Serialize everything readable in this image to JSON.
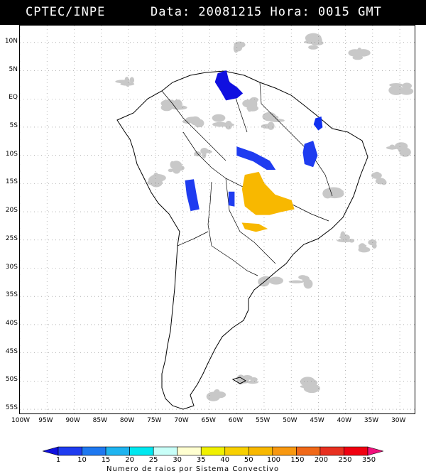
{
  "header": {
    "agency": "CPTEC/INPE",
    "datetime": "Data: 20081215 Hora: 0015 GMT"
  },
  "latitude_labels": [
    "10N",
    "5N",
    "EQ",
    "5S",
    "10S",
    "15S",
    "20S",
    "25S",
    "30S",
    "35S",
    "40S",
    "45S",
    "50S",
    "55S"
  ],
  "longitude_labels": [
    "100W",
    "95W",
    "90W",
    "85W",
    "80W",
    "75W",
    "70W",
    "65W",
    "60W",
    "55W",
    "50W",
    "45W",
    "40W",
    "35W",
    "30W"
  ],
  "legend": {
    "title": "Numero de raios por Sistema Convectivo",
    "values": [
      "1",
      "10",
      "15",
      "20",
      "25",
      "30",
      "35",
      "40",
      "50",
      "100",
      "150",
      "200",
      "250",
      "350"
    ],
    "colors": [
      "#1010e0",
      "#1f3cf0",
      "#1e78f0",
      "#1eb4f0",
      "#00e8f0",
      "#c8fff8",
      "#ffffd0",
      "#f0f000",
      "#f8d000",
      "#f8b800",
      "#f89810",
      "#f06818",
      "#e83020",
      "#f00010",
      "#f0107c"
    ]
  },
  "map": {
    "lon_range": [
      -100,
      -27
    ],
    "lat_range": [
      -56,
      13
    ],
    "grid_dashed": true,
    "cloud_color": "#c8c8c8",
    "systems": [
      {
        "name": "amazon-north",
        "color": "#1010e0",
        "lonlat": [
          [
            -63.5,
            4.5
          ],
          [
            -62,
            5
          ],
          [
            -61.5,
            3
          ],
          [
            -60,
            2
          ],
          [
            -59,
            1
          ],
          [
            -60,
            0.2
          ],
          [
            -62,
            -0.2
          ],
          [
            -63,
            1.5
          ],
          [
            -64,
            3
          ]
        ]
      },
      {
        "name": "northeast-a",
        "color": "#1030f0",
        "lonlat": [
          [
            -45.5,
            -3.5
          ],
          [
            -44.5,
            -3.2
          ],
          [
            -44.3,
            -5
          ],
          [
            -45,
            -5.5
          ],
          [
            -45.8,
            -4.5
          ]
        ]
      },
      {
        "name": "northeast-b",
        "color": "#1f3cf0",
        "lonlat": [
          [
            -47.5,
            -8
          ],
          [
            -46,
            -7.5
          ],
          [
            -45.2,
            -10
          ],
          [
            -46,
            -12
          ],
          [
            -47.5,
            -11.5
          ],
          [
            -47.8,
            -9.5
          ]
        ]
      },
      {
        "name": "central",
        "color": "#1f3cf0",
        "lonlat": [
          [
            -60,
            -8.5
          ],
          [
            -57,
            -9.5
          ],
          [
            -54,
            -11
          ],
          [
            -53,
            -12.5
          ],
          [
            -54.5,
            -12.5
          ],
          [
            -57,
            -11
          ],
          [
            -60,
            -10
          ]
        ]
      },
      {
        "name": "bolivia",
        "color": "#1f3cf0",
        "lonlat": [
          [
            -69.5,
            -14.5
          ],
          [
            -68,
            -14.3
          ],
          [
            -67.5,
            -17
          ],
          [
            -67,
            -19.5
          ],
          [
            -68.5,
            -19.8
          ],
          [
            -69.2,
            -17
          ]
        ]
      },
      {
        "name": "bolivia-small",
        "color": "#1f3cf0",
        "lonlat": [
          [
            -61.5,
            -16.5
          ],
          [
            -60.5,
            -16.5
          ],
          [
            -60.5,
            -19
          ],
          [
            -61.5,
            -18.8
          ]
        ]
      },
      {
        "name": "mato-grosso",
        "color": "#f8b800",
        "lonlat": [
          [
            -58.5,
            -13.5
          ],
          [
            -56,
            -13
          ],
          [
            -55,
            -15
          ],
          [
            -53,
            -17
          ],
          [
            -50,
            -18
          ],
          [
            -49.5,
            -19.5
          ],
          [
            -52,
            -20
          ],
          [
            -54,
            -20.5
          ],
          [
            -56.5,
            -20.5
          ],
          [
            -58.5,
            -19
          ],
          [
            -59,
            -16
          ]
        ]
      },
      {
        "name": "parana",
        "color": "#f8b800",
        "lonlat": [
          [
            -59,
            -22
          ],
          [
            -56,
            -22.2
          ],
          [
            -54.5,
            -23
          ],
          [
            -56.5,
            -23.5
          ],
          [
            -58.5,
            -23
          ]
        ]
      }
    ]
  }
}
